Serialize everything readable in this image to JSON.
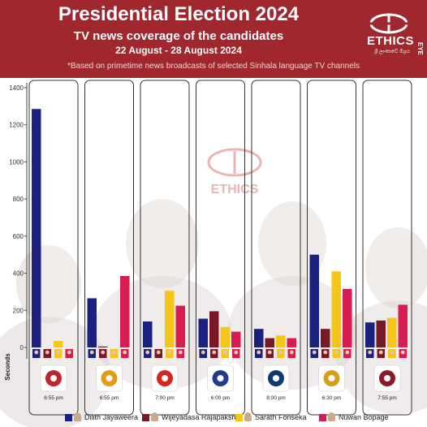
{
  "header": {
    "title": "Presidential Election 2024",
    "subtitle": "TV news coverage of the candidates",
    "date_range": "22 August - 28 August 2024",
    "note": "*Based on primetime news broadcasts of selected Sinhala language TV channels",
    "logo_text": "ETHICS",
    "logo_side_text": "EYE",
    "logo_subtext": "ශ්‍රී ලාංකාවේ ඕශ්‍රය"
  },
  "colors": {
    "header_bg": "#a0272e",
    "series": [
      "#1a2180",
      "#7a1828",
      "#f5c518",
      "#d81b50"
    ]
  },
  "chart_data": {
    "type": "bar",
    "ylabel": "Seconds",
    "ylim": [
      0,
      1400
    ],
    "yticks": [
      0,
      200,
      400,
      600,
      800,
      1000,
      1200,
      1400
    ],
    "grid": false,
    "legend_position": "bottom",
    "panels": [
      {
        "time": "6:55 pm",
        "values": [
          1285,
          0,
          35,
          0
        ]
      },
      {
        "time": "6:55 pm",
        "values": [
          265,
          5,
          0,
          385
        ]
      },
      {
        "time": "7:00 pm",
        "values": [
          140,
          0,
          305,
          225
        ]
      },
      {
        "time": "6:00 pm",
        "values": [
          155,
          195,
          110,
          85
        ]
      },
      {
        "time": "8:00 pm",
        "values": [
          100,
          50,
          65,
          50
        ]
      },
      {
        "time": "6:30 pm",
        "values": [
          500,
          100,
          410,
          315
        ]
      },
      {
        "time": "7:55 pm",
        "values": [
          135,
          145,
          160,
          230
        ]
      }
    ],
    "series": [
      {
        "name": "Dilith Jayaweera"
      },
      {
        "name": "Wijeyadasa Rajapakshe"
      },
      {
        "name": "Sarath Fonseka"
      },
      {
        "name": "Nuwan Bopage"
      }
    ]
  }
}
